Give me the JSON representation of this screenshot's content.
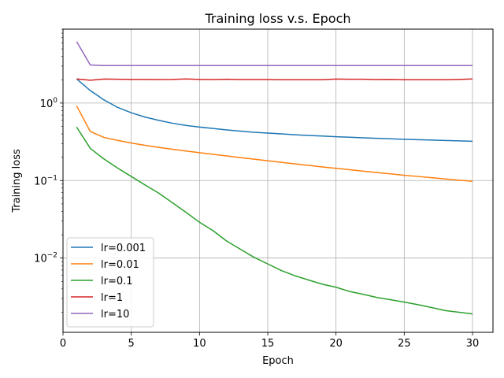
{
  "chart_data": {
    "type": "line",
    "title": "Training loss v.s. Epoch",
    "xlabel": "Epoch",
    "ylabel": "Training loss",
    "xlim": [
      0,
      31.5
    ],
    "ylim": [
      0.0011,
      9
    ],
    "yscale": "log",
    "grid": true,
    "legend_position": "lower-left",
    "x_ticks": [
      0,
      5,
      10,
      15,
      20,
      25,
      30
    ],
    "y_ticks": [
      {
        "value": 0.01,
        "base": "10",
        "exp": "−2"
      },
      {
        "value": 0.1,
        "base": "10",
        "exp": "−1"
      },
      {
        "value": 1,
        "base": "10",
        "exp": "0"
      }
    ],
    "x": [
      1,
      2,
      3,
      4,
      5,
      6,
      7,
      8,
      9,
      10,
      11,
      12,
      13,
      14,
      15,
      16,
      17,
      18,
      19,
      20,
      21,
      22,
      23,
      24,
      25,
      26,
      27,
      28,
      29,
      30
    ],
    "series": [
      {
        "name": "lr=0.001",
        "color": "#1f77b4",
        "values": [
          2.05,
          1.45,
          1.1,
          0.88,
          0.75,
          0.66,
          0.6,
          0.55,
          0.515,
          0.49,
          0.47,
          0.45,
          0.435,
          0.42,
          0.41,
          0.4,
          0.39,
          0.382,
          0.375,
          0.368,
          0.362,
          0.356,
          0.351,
          0.346,
          0.341,
          0.337,
          0.333,
          0.329,
          0.325,
          0.322
        ]
      },
      {
        "name": "lr=0.01",
        "color": "#ff7f0e",
        "values": [
          0.92,
          0.43,
          0.36,
          0.33,
          0.305,
          0.285,
          0.268,
          0.254,
          0.241,
          0.229,
          0.218,
          0.208,
          0.198,
          0.189,
          0.18,
          0.172,
          0.164,
          0.157,
          0.15,
          0.144,
          0.138,
          0.132,
          0.127,
          0.122,
          0.117,
          0.113,
          0.109,
          0.105,
          0.101,
          0.098
        ]
      },
      {
        "name": "lr=0.1",
        "color": "#2ca02c",
        "values": [
          0.49,
          0.26,
          0.19,
          0.145,
          0.113,
          0.088,
          0.069,
          0.052,
          0.039,
          0.029,
          0.0225,
          0.0165,
          0.013,
          0.0102,
          0.0084,
          0.0069,
          0.0059,
          0.0052,
          0.0046,
          0.0042,
          0.0037,
          0.0034,
          0.0031,
          0.0029,
          0.0027,
          0.0025,
          0.0023,
          0.0021,
          0.002,
          0.0019
        ]
      },
      {
        "name": "lr=1",
        "color": "#d62728",
        "values": [
          2.05,
          1.97,
          2.04,
          2.03,
          2.02,
          2.02,
          2.01,
          2.02,
          2.05,
          2.02,
          2.01,
          2.03,
          2.01,
          2.01,
          2.01,
          2.0,
          2.0,
          2.0,
          2.0,
          2.04,
          2.03,
          2.03,
          2.01,
          2.02,
          2.0,
          2.0,
          2.0,
          2.0,
          2.02,
          2.05
        ]
      },
      {
        "name": "lr=10",
        "color": "#9467bd",
        "values": [
          6.2,
          3.1,
          3.05,
          3.05,
          3.05,
          3.05,
          3.05,
          3.05,
          3.05,
          3.05,
          3.05,
          3.05,
          3.05,
          3.05,
          3.05,
          3.05,
          3.05,
          3.05,
          3.05,
          3.05,
          3.05,
          3.05,
          3.05,
          3.05,
          3.05,
          3.05,
          3.05,
          3.05,
          3.05,
          3.05
        ]
      }
    ]
  }
}
